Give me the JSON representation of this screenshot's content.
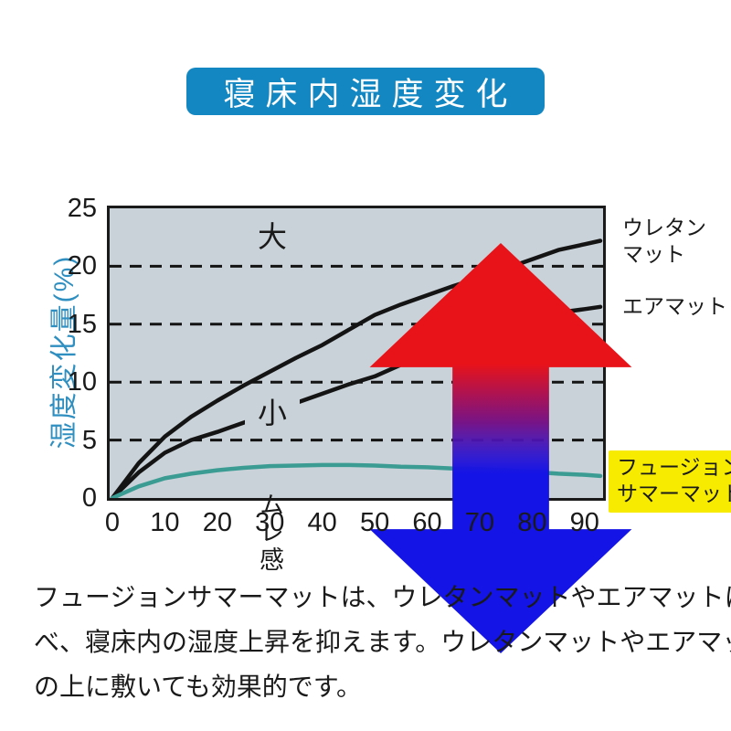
{
  "title_banner": "寝床内湿度変化",
  "colors": {
    "banner_blue": "#1287c2",
    "ylabel_blue": "#2f8fc0",
    "plot_bg": "#c9d2d8",
    "curve_black": "#141414",
    "curve_teal": "#3b9c94",
    "highlight_yellow": "#f7ec00",
    "up_arrow_red": "#e81319",
    "down_arrow_blue": "#1414e6"
  },
  "chart_data": {
    "type": "line",
    "title": "寝床内湿度変化",
    "xlabel": "",
    "ylabel": "湿度変化量(%)",
    "xlim": [
      0,
      93
    ],
    "ylim": [
      0,
      25
    ],
    "x_ticks": [
      0,
      10,
      20,
      30,
      40,
      50,
      60,
      70,
      80,
      90
    ],
    "y_ticks": [
      0,
      5,
      10,
      15,
      20,
      25
    ],
    "gridlines_y": [
      5,
      10,
      15,
      20
    ],
    "grid_style": "dashed horizontal",
    "legend_position": "right outside",
    "x": [
      0,
      5,
      10,
      15,
      20,
      25,
      30,
      35,
      40,
      45,
      50,
      55,
      60,
      65,
      70,
      75,
      80,
      85,
      90,
      93
    ],
    "series": [
      {
        "name": "ウレタンマット",
        "label_lines": {
          "l1": "ウレタン",
          "l2": "マット"
        },
        "color": "#141414",
        "values": [
          0,
          3.0,
          5.3,
          7.0,
          8.4,
          9.7,
          10.9,
          12.1,
          13.2,
          14.5,
          15.8,
          16.7,
          17.5,
          18.3,
          19.0,
          19.8,
          20.6,
          21.4,
          21.9,
          22.2
        ]
      },
      {
        "name": "エアマット",
        "label_lines": {
          "l1": "エアマット",
          "l2": ""
        },
        "color": "#141414",
        "values": [
          0,
          2.2,
          3.9,
          5.0,
          5.7,
          6.5,
          7.3,
          8.2,
          9.0,
          9.8,
          10.5,
          11.5,
          12.4,
          13.2,
          14.0,
          14.8,
          15.5,
          16.0,
          16.3,
          16.5
        ]
      },
      {
        "name": "フュージョンサマーマット",
        "label_lines": {
          "l1": "フュージョン",
          "l2": "サマーマット"
        },
        "color": "#3b9c94",
        "highlighted": true,
        "values": [
          0,
          1.0,
          1.7,
          2.1,
          2.4,
          2.6,
          2.75,
          2.8,
          2.85,
          2.85,
          2.8,
          2.7,
          2.65,
          2.55,
          2.5,
          2.4,
          2.25,
          2.1,
          2.0,
          1.9
        ]
      }
    ],
    "annotations": {
      "top": "大",
      "middle": "ムレ感",
      "bottom": "小",
      "meaning": "ムレ感 大(up red arrow) / 小(down blue arrow)"
    }
  },
  "description": {
    "line1": "フュージョンサマーマットは、ウレタンマットやエアマットに比",
    "line2": "べ、寝床内の湿度上昇を抑えます。ウレタンマットやエアマット",
    "line3": "の上に敷いても効果的です。"
  }
}
